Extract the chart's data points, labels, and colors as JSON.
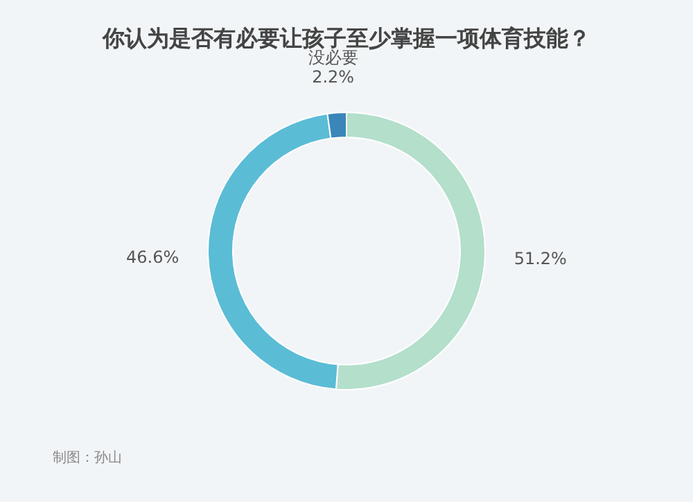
{
  "chart_data": {
    "type": "donut",
    "title": "你认为是否有必要让孩子至少掌握一项体育技能？",
    "categories": [
      null,
      null,
      "没必要"
    ],
    "values": [
      51.2,
      46.6,
      2.2
    ],
    "value_labels": [
      "51.2%",
      "46.6%",
      "2.2%"
    ],
    "colors": [
      "#b3dfcb",
      "#5bbcd6",
      "#3a86b8"
    ],
    "annotations": [
      "制图：孙山"
    ]
  }
}
